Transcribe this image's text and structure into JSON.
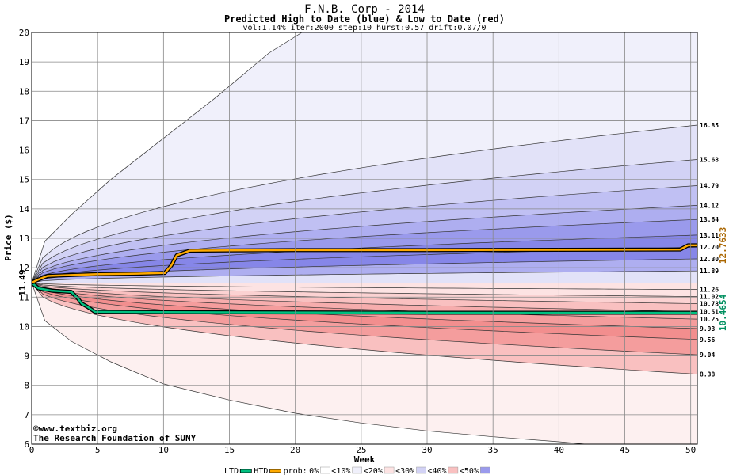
{
  "chart_data": {
    "type": "area",
    "title": "F.N.B. Corp - 2014",
    "subtitle": "Predicted High to Date (blue) &  Low to Date (red)",
    "params": "vol:1.14% iter:2000 step:10 hurst:0.57 drift:0.07/0",
    "xlabel": "Week",
    "ylabel": "Price ($)",
    "xlim": [
      0,
      50.5
    ],
    "ylim": [
      6,
      20
    ],
    "x_ticks": [
      0,
      5,
      10,
      15,
      20,
      25,
      30,
      35,
      40,
      45,
      50
    ],
    "y_ticks": [
      6,
      7,
      8,
      9,
      10,
      11,
      12,
      13,
      14,
      15,
      16,
      17,
      18,
      19,
      20
    ],
    "grid": true,
    "start_price": 11.49,
    "start_label": "11.49",
    "high_bands": [
      {
        "end": 16.85,
        "label": "16.85"
      },
      {
        "end": 15.68,
        "label": "15.68"
      },
      {
        "end": 14.79,
        "label": "14.79"
      },
      {
        "end": 14.12,
        "label": "14.12"
      },
      {
        "end": 13.64,
        "label": "13.64"
      },
      {
        "end": 13.11,
        "label": "13.11"
      },
      {
        "end": 12.7,
        "label": "12.70"
      },
      {
        "end": 12.3,
        "label": "12.30"
      },
      {
        "end": 11.89,
        "label": "11.89"
      }
    ],
    "low_bands": [
      {
        "end": 11.26,
        "label": "11.26"
      },
      {
        "end": 11.02,
        "label": "11.02"
      },
      {
        "end": 10.78,
        "label": "10.78"
      },
      {
        "end": 10.51,
        "label": "10.51"
      },
      {
        "end": 10.25,
        "label": "10.25"
      },
      {
        "end": 9.93,
        "label": "9.93"
      },
      {
        "end": 9.56,
        "label": "9.56"
      },
      {
        "end": 9.04,
        "label": "9.04"
      },
      {
        "end": 8.38,
        "label": "8.38"
      }
    ],
    "outer_high": {
      "x": [
        0,
        1,
        3,
        6,
        10,
        14,
        18,
        20.5
      ],
      "y": [
        11.49,
        12.9,
        13.8,
        15.0,
        16.4,
        17.8,
        19.3,
        20
      ]
    },
    "outer_low": {
      "x": [
        0,
        1,
        3,
        6,
        10,
        15,
        20,
        25,
        30,
        35,
        40,
        42
      ],
      "y": [
        11.49,
        10.2,
        9.5,
        8.8,
        8.05,
        7.5,
        7.05,
        6.72,
        6.45,
        6.25,
        6.08,
        6.0
      ]
    },
    "htd_series": {
      "name": "HTD",
      "color": "#ffaa00",
      "value_label": "12.7633",
      "x": [
        0,
        0.4,
        1.2,
        3,
        5,
        8,
        10.1,
        10.6,
        11,
        12,
        15,
        20,
        30,
        40,
        49.2,
        49.8,
        50.5
      ],
      "y": [
        11.49,
        11.58,
        11.72,
        11.75,
        11.78,
        11.8,
        11.82,
        12.08,
        12.42,
        12.58,
        12.59,
        12.6,
        12.6,
        12.61,
        12.62,
        12.76,
        12.76
      ]
    },
    "ltd_series": {
      "name": "LTD",
      "color": "#00c080",
      "value_label": "10.4654",
      "x": [
        0,
        0.5,
        1.5,
        3,
        3.5,
        3.8,
        4.2,
        4.8,
        10,
        20,
        30,
        40,
        50.5
      ],
      "y": [
        11.49,
        11.3,
        11.22,
        11.18,
        10.96,
        10.78,
        10.68,
        10.5,
        10.49,
        10.48,
        10.47,
        10.47,
        10.47
      ]
    },
    "colors": {
      "high_bands": [
        "#f0f0fb",
        "#e2e2f8",
        "#d2d2f5",
        "#c0c0f3",
        "#aeaef0",
        "#9a9aec",
        "#8686e8",
        "#8686e8",
        "#aeaef0",
        "#e2e2f8"
      ],
      "low_bands": [
        "#fdf0f0",
        "#fde3e3",
        "#fbd2d2",
        "#f9c0c0",
        "#f6adad",
        "#f49d9d",
        "#f28e8e",
        "#f49d9d",
        "#f9c0c0",
        "#fde3e3"
      ],
      "htd_line": "#ffaa00",
      "htd_value_label": "#aa6600",
      "ltd_line": "#00c080",
      "ltd_value_label": "#009060",
      "title": "#000000",
      "credit": "#000080"
    }
  },
  "credit": {
    "site": "www.textbiz.org",
    "org": "The Research Foundation of SUNY"
  },
  "legend": {
    "ltd": "LTD",
    "htd": "HTD",
    "prob": "prob:",
    "items": [
      {
        "label": "0%",
        "color": "#ffffff"
      },
      {
        "label": "<10%",
        "color": "#f0f0fb"
      },
      {
        "label": "<20%",
        "color": "#fde3e3"
      },
      {
        "label": "<30%",
        "color": "#d2d2f5"
      },
      {
        "label": "<40%",
        "color": "#f9c0c0"
      },
      {
        "label": "<50%",
        "color": "#9a9aec"
      }
    ]
  }
}
